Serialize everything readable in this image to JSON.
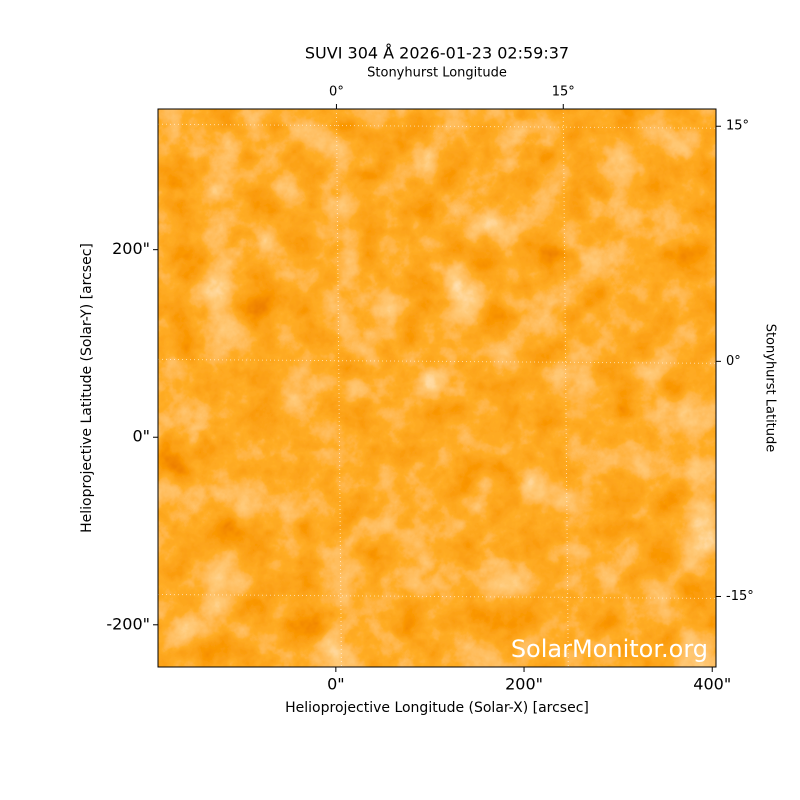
{
  "chart_data": {
    "type": "image",
    "title": "SUVI 304 Å 2026-01-23 02:59:37",
    "xlabel": "Helioprojective Longitude (Solar-X) [arcsec]",
    "ylabel": "Helioprojective Latitude (Solar-Y) [arcsec]",
    "x2label": "Stonyhurst Longitude",
    "y2label": "Stonyhurst Latitude",
    "xlim": [
      -189,
      404
    ],
    "ylim": [
      -245,
      350
    ],
    "xticks": [
      {
        "value": 0,
        "label": "0\""
      },
      {
        "value": 200,
        "label": "200\""
      },
      {
        "value": 400,
        "label": "400\""
      }
    ],
    "yticks": [
      {
        "value": -200,
        "label": "-200\""
      },
      {
        "value": 0,
        "label": "0\""
      },
      {
        "value": 200,
        "label": "200\""
      }
    ],
    "x2lim": [
      -11.8,
      25.1
    ],
    "x2ticks": [
      {
        "value": 0,
        "label": "0°"
      },
      {
        "value": 15,
        "label": "15°"
      }
    ],
    "y2lim": [
      -19.5,
      16.1
    ],
    "y2ticks": [
      {
        "value": -15,
        "label": "-15°"
      },
      {
        "value": 0,
        "label": "0°"
      },
      {
        "value": 15,
        "label": "15°"
      }
    ],
    "grid": true,
    "watermark": "SolarMonitor.org"
  }
}
